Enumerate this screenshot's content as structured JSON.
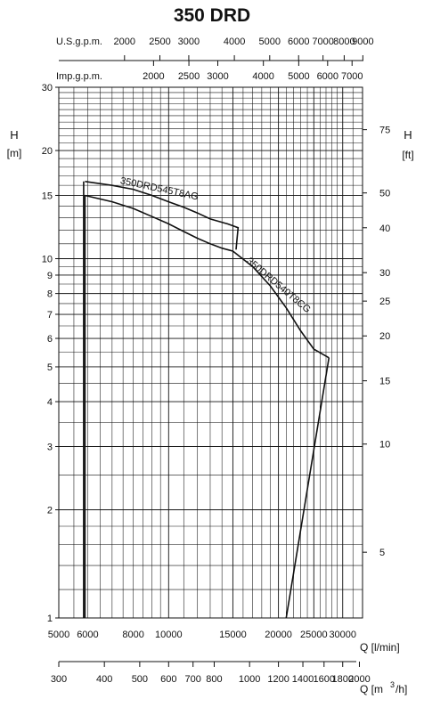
{
  "chart_data": {
    "type": "line",
    "title": "350 DRD",
    "y_left": {
      "label_top": "H",
      "label_bottom": "[m]",
      "scale": "log",
      "range": [
        1,
        30
      ],
      "ticks": [
        "1",
        "2",
        "3",
        "4",
        "5",
        "6",
        "7",
        "8",
        "9",
        "10",
        "15",
        "20",
        "30"
      ]
    },
    "y_right": {
      "label_top": "H",
      "label_bottom": "[ft]",
      "ticks": [
        "5",
        "10",
        "15",
        "20",
        "25",
        "30",
        "40",
        "50",
        "75"
      ]
    },
    "x_lmin": {
      "label": "Q [l/min]",
      "scale": "log",
      "ticks": [
        "5000",
        "6000",
        "8000",
        "10000",
        "15000",
        "20000",
        "25000",
        "30000"
      ]
    },
    "x_m3h": {
      "label": "Q [m",
      "label_sup": "3",
      "label_tail": "/h]",
      "ticks": [
        "300",
        "400",
        "500",
        "600",
        "700",
        "800",
        "1000",
        "1200",
        "1400",
        "1600",
        "1800",
        "2000"
      ]
    },
    "x_usgpm": {
      "label": "U.S.g.p.m.",
      "ticks": [
        "2000",
        "2500",
        "3000",
        "4000",
        "5000",
        "6000",
        "7000",
        "8000",
        "9000"
      ]
    },
    "x_impgpm": {
      "label": "Imp.g.p.m.",
      "ticks": [
        "2000",
        "2500",
        "3000",
        "4000",
        "5000",
        "6000",
        "7000"
      ]
    },
    "grid": true,
    "series": [
      {
        "name": "350DRD545T8AG",
        "points": [
          [
            5900,
            15.0
          ],
          [
            7000,
            14.4
          ],
          [
            8000,
            13.8
          ],
          [
            9000,
            13.1
          ],
          [
            10000,
            12.5
          ],
          [
            11000,
            11.9
          ],
          [
            12000,
            11.4
          ],
          [
            13000,
            11.0
          ],
          [
            14000,
            10.7
          ],
          [
            15000,
            10.5
          ]
        ]
      },
      {
        "name": "350DRD540T8CG",
        "points": [
          [
            15000,
            10.5
          ],
          [
            17000,
            9.5
          ],
          [
            19000,
            8.4
          ],
          [
            21000,
            7.3
          ],
          [
            23000,
            6.3
          ],
          [
            25000,
            5.6
          ],
          [
            27500,
            5.3
          ]
        ]
      }
    ]
  }
}
